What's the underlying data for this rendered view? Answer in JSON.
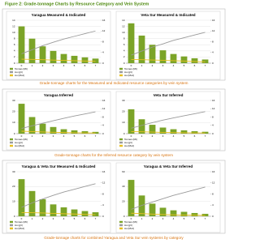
{
  "figure_title": "Figure 2: Grade-tonnage Charts by Resource Category and Vein System",
  "captions": [
    "Grade-tonnage charts for the Measured and Indicated resource categories by vein system",
    "Grade-tonnage charts for the Inferred resource category by vein system",
    "Grade-tonnage charts for combined Yaragua and Veta Sur vein systems by category"
  ],
  "chart_data": [
    {
      "type": "bar",
      "title": "Yaragua Measured & Indicated",
      "categories": [
        "0",
        "1",
        "2",
        "3",
        "4",
        "5",
        "6",
        "7"
      ],
      "ylim": [
        0,
        14
      ],
      "yticks": [
        0,
        2,
        4,
        6,
        8,
        10,
        12,
        14
      ],
      "y2lim": [
        0,
        16
      ],
      "y2ticks": [
        0,
        4,
        8,
        12,
        16
      ],
      "series": [
        {
          "name": "Tonnes (Mt)",
          "color": "#7ba428",
          "values": [
            12,
            8,
            5.5,
            4,
            3,
            2.4,
            1.9,
            1.5
          ]
        },
        {
          "name": "Au (g/t)",
          "color": "#9a9a9a",
          "axis": "y2",
          "values": [
            3.5,
            5,
            6.5,
            7.8,
            9,
            10,
            11,
            12
          ]
        },
        {
          "name": "Au (Moz)",
          "color": "#e8c020",
          "values": [
            1.3,
            1.25,
            1.15,
            1,
            0.9,
            0.8,
            0.7,
            0.6
          ]
        }
      ]
    },
    {
      "type": "bar",
      "title": "Veta Sur Measured & Indicated",
      "categories": [
        "0",
        "1",
        "2",
        "3",
        "4",
        "5",
        "6",
        "7"
      ],
      "ylim": [
        0,
        14
      ],
      "yticks": [
        0,
        2,
        4,
        6,
        8,
        10,
        12,
        14
      ],
      "y2lim": [
        0,
        16
      ],
      "y2ticks": [
        0,
        4,
        8,
        12,
        16
      ],
      "series": [
        {
          "name": "Tonnes (Mt)",
          "color": "#7ba428",
          "values": [
            13,
            9,
            6,
            4.2,
            3,
            2.2,
            1.6,
            1.2
          ]
        },
        {
          "name": "Au (g/t)",
          "color": "#9a9a9a",
          "axis": "y2",
          "values": [
            3,
            4.5,
            6,
            7.2,
            8.5,
            9.5,
            10.5,
            11.5
          ]
        },
        {
          "name": "Au (Moz)",
          "color": "#e8c020",
          "values": [
            1.2,
            1.15,
            1.05,
            0.95,
            0.8,
            0.7,
            0.55,
            0.45
          ]
        }
      ]
    },
    {
      "type": "bar",
      "title": "Yaragua Inferred",
      "categories": [
        "0",
        "1",
        "2",
        "3",
        "4",
        "5",
        "6",
        "7"
      ],
      "ylim": [
        0,
        30
      ],
      "yticks": [
        0,
        10,
        20,
        30
      ],
      "y2lim": [
        0,
        16
      ],
      "y2ticks": [
        0,
        4,
        8,
        12,
        16
      ],
      "series": [
        {
          "name": "Tonnes (Mt)",
          "color": "#7ba428",
          "values": [
            27,
            15,
            9,
            6,
            4,
            3,
            2.2,
            1.6
          ]
        },
        {
          "name": "Au (g/t)",
          "color": "#9a9a9a",
          "axis": "y2",
          "values": [
            2.5,
            3.8,
            5,
            6.2,
            7.4,
            8.5,
            9.5,
            10.5
          ]
        },
        {
          "name": "Au (Moz)",
          "color": "#e8c020",
          "values": [
            2.2,
            1.9,
            1.5,
            1.2,
            1,
            0.8,
            0.7,
            0.55
          ]
        }
      ]
    },
    {
      "type": "bar",
      "title": "Veta Sur Inferred",
      "categories": [
        "0",
        "1",
        "2",
        "3",
        "4",
        "5",
        "6",
        "7"
      ],
      "ylim": [
        0,
        30
      ],
      "yticks": [
        0,
        10,
        20,
        30
      ],
      "y2lim": [
        0,
        16
      ],
      "y2ticks": [
        0,
        4,
        8,
        12,
        16
      ],
      "series": [
        {
          "name": "Tonnes (Mt)",
          "color": "#7ba428",
          "values": [
            22,
            13,
            8,
            5.5,
            4,
            3,
            2.2,
            1.7
          ]
        },
        {
          "name": "Au (g/t)",
          "color": "#9a9a9a",
          "axis": "y2",
          "values": [
            2.6,
            4,
            5.3,
            6.5,
            7.6,
            8.6,
            9.6,
            10.6
          ]
        },
        {
          "name": "Au (Moz)",
          "color": "#e8c020",
          "values": [
            1.9,
            1.7,
            1.4,
            1.15,
            0.95,
            0.8,
            0.68,
            0.56
          ]
        }
      ]
    },
    {
      "type": "bar",
      "title": "Yaragua & Veta Sur Measured & Indicated",
      "categories": [
        "0",
        "1",
        "2",
        "3",
        "4",
        "5",
        "6",
        "7"
      ],
      "ylim": [
        0,
        30
      ],
      "yticks": [
        0,
        10,
        20,
        30
      ],
      "y2lim": [
        0,
        16
      ],
      "y2ticks": [
        0,
        4,
        8,
        12,
        16
      ],
      "series": [
        {
          "name": "Tonnes (Mt)",
          "color": "#7ba428",
          "values": [
            25,
            17,
            11.5,
            8,
            6,
            4.6,
            3.5,
            2.7
          ]
        },
        {
          "name": "Au (g/t)",
          "color": "#9a9a9a",
          "axis": "y2",
          "values": [
            3.2,
            4.8,
            6.2,
            7.5,
            8.7,
            9.7,
            10.7,
            11.7
          ]
        },
        {
          "name": "Au (Moz)",
          "color": "#e8c020",
          "values": [
            2.5,
            2.4,
            2.2,
            1.95,
            1.7,
            1.5,
            1.25,
            1.05
          ]
        }
      ]
    },
    {
      "type": "bar",
      "title": "Yaragua & Veta Sur Inferred",
      "categories": [
        "0",
        "1",
        "2",
        "3",
        "4",
        "5",
        "6",
        "7"
      ],
      "ylim": [
        0,
        60
      ],
      "yticks": [
        0,
        20,
        40,
        60
      ],
      "y2lim": [
        0,
        16
      ],
      "y2ticks": [
        0,
        4,
        8,
        12,
        16
      ],
      "series": [
        {
          "name": "Tonnes (Mt)",
          "color": "#7ba428",
          "values": [
            49,
            28,
            17,
            11.5,
            8,
            6,
            4.4,
            3.3
          ]
        },
        {
          "name": "Au (g/t)",
          "color": "#9a9a9a",
          "axis": "y2",
          "values": [
            2.5,
            3.9,
            5.1,
            6.3,
            7.5,
            8.5,
            9.5,
            10.5
          ]
        },
        {
          "name": "Au (Moz)",
          "color": "#e8c020",
          "values": [
            4.1,
            3.6,
            2.9,
            2.35,
            1.95,
            1.6,
            1.38,
            1.11
          ]
        }
      ]
    }
  ]
}
